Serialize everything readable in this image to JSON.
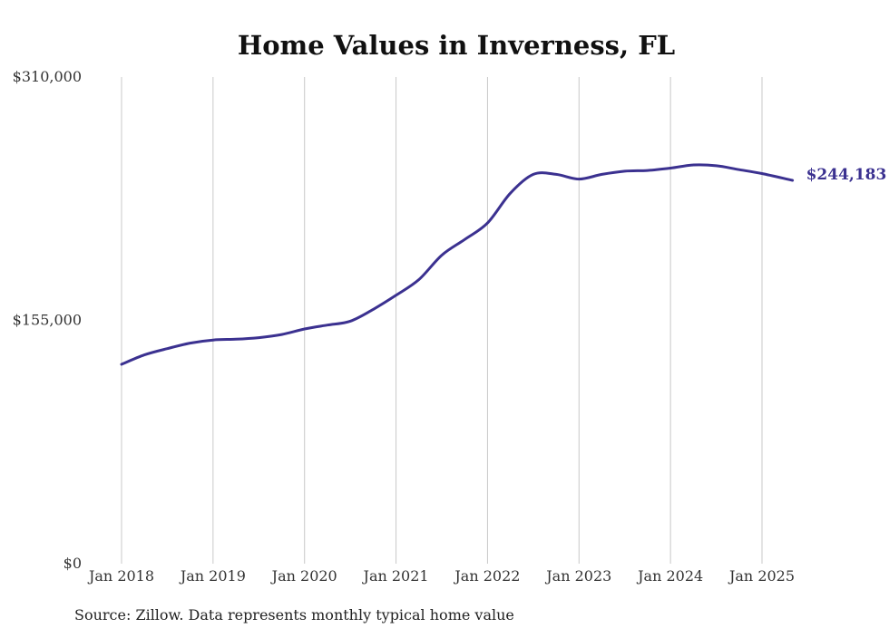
{
  "chart_data": {
    "type": "line",
    "title": "Home Values in Inverness, FL",
    "source": "Source: Zillow. Data represents monthly typical home value",
    "ylim": [
      0,
      310000
    ],
    "y_ticks": [
      0,
      155000,
      310000
    ],
    "y_tick_labels": [
      "$0",
      "$155,000",
      "$310,000"
    ],
    "x_ticks": [
      "2018-01",
      "2019-01",
      "2020-01",
      "2021-01",
      "2022-01",
      "2023-01",
      "2024-01",
      "2025-01"
    ],
    "x_tick_labels": [
      "Jan 2018",
      "Jan 2019",
      "Jan 2020",
      "Jan 2021",
      "Jan 2022",
      "Jan 2023",
      "Jan 2024",
      "Jan 2025"
    ],
    "grid": "vertical",
    "color": "#3b3190",
    "end_label": "$244,183",
    "series": [
      {
        "x": [
          "2018-01",
          "2018-04",
          "2018-07",
          "2018-10",
          "2019-01",
          "2019-04",
          "2019-07",
          "2019-10",
          "2020-01",
          "2020-04",
          "2020-07",
          "2020-10",
          "2021-01",
          "2021-04",
          "2021-07",
          "2021-10",
          "2022-01",
          "2022-04",
          "2022-07",
          "2022-10",
          "2023-01",
          "2023-04",
          "2023-07",
          "2023-10",
          "2024-01",
          "2024-04",
          "2024-07",
          "2024-10",
          "2025-01",
          "2025-05"
        ],
        "values": [
          127000,
          133000,
          137000,
          140500,
          142500,
          143000,
          144000,
          146000,
          149500,
          152000,
          154500,
          162000,
          171000,
          181000,
          196500,
          206500,
          217000,
          236000,
          248000,
          248000,
          245000,
          248000,
          250000,
          250500,
          252000,
          254000,
          253500,
          251000,
          248500,
          244183
        ]
      }
    ]
  }
}
